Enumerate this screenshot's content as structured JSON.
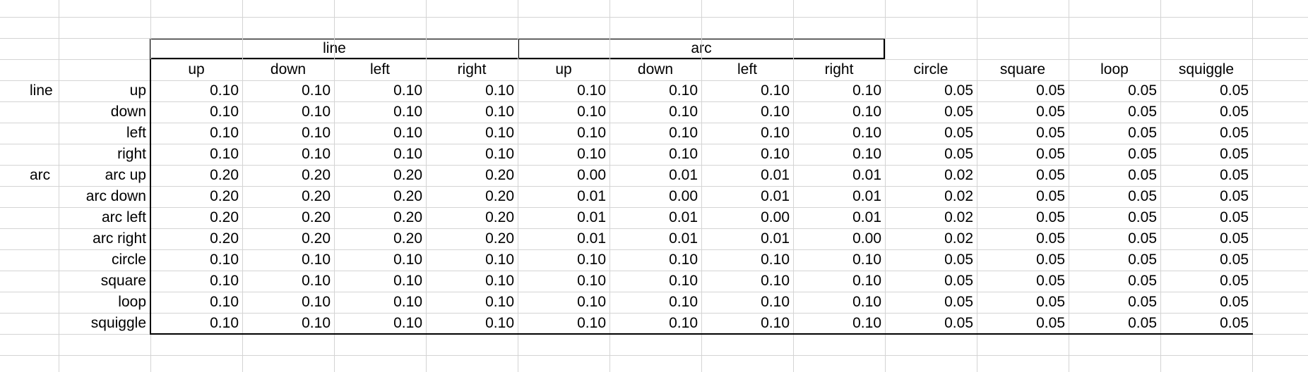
{
  "group_headers": {
    "line": "line",
    "arc": "arc"
  },
  "columns": [
    "up",
    "down",
    "left",
    "right",
    "up",
    "down",
    "left",
    "right",
    "circle",
    "square",
    "loop",
    "squiggle"
  ],
  "row_groups": [
    "line",
    "",
    "",
    "",
    "arc",
    "",
    "",
    "",
    "",
    "",
    "",
    ""
  ],
  "rows": [
    {
      "label": "up",
      "values": [
        "0.10",
        "0.10",
        "0.10",
        "0.10",
        "0.10",
        "0.10",
        "0.10",
        "0.10",
        "0.05",
        "0.05",
        "0.05",
        "0.05"
      ]
    },
    {
      "label": "down",
      "values": [
        "0.10",
        "0.10",
        "0.10",
        "0.10",
        "0.10",
        "0.10",
        "0.10",
        "0.10",
        "0.05",
        "0.05",
        "0.05",
        "0.05"
      ]
    },
    {
      "label": "left",
      "values": [
        "0.10",
        "0.10",
        "0.10",
        "0.10",
        "0.10",
        "0.10",
        "0.10",
        "0.10",
        "0.05",
        "0.05",
        "0.05",
        "0.05"
      ]
    },
    {
      "label": "right",
      "values": [
        "0.10",
        "0.10",
        "0.10",
        "0.10",
        "0.10",
        "0.10",
        "0.10",
        "0.10",
        "0.05",
        "0.05",
        "0.05",
        "0.05"
      ]
    },
    {
      "label": "arc up",
      "values": [
        "0.20",
        "0.20",
        "0.20",
        "0.20",
        "0.00",
        "0.01",
        "0.01",
        "0.01",
        "0.02",
        "0.05",
        "0.05",
        "0.05"
      ]
    },
    {
      "label": "arc down",
      "values": [
        "0.20",
        "0.20",
        "0.20",
        "0.20",
        "0.01",
        "0.00",
        "0.01",
        "0.01",
        "0.02",
        "0.05",
        "0.05",
        "0.05"
      ]
    },
    {
      "label": "arc left",
      "values": [
        "0.20",
        "0.20",
        "0.20",
        "0.20",
        "0.01",
        "0.01",
        "0.00",
        "0.01",
        "0.02",
        "0.05",
        "0.05",
        "0.05"
      ]
    },
    {
      "label": "arc right",
      "values": [
        "0.20",
        "0.20",
        "0.20",
        "0.20",
        "0.01",
        "0.01",
        "0.01",
        "0.00",
        "0.02",
        "0.05",
        "0.05",
        "0.05"
      ]
    },
    {
      "label": "circle",
      "values": [
        "0.10",
        "0.10",
        "0.10",
        "0.10",
        "0.10",
        "0.10",
        "0.10",
        "0.10",
        "0.05",
        "0.05",
        "0.05",
        "0.05"
      ]
    },
    {
      "label": "square",
      "values": [
        "0.10",
        "0.10",
        "0.10",
        "0.10",
        "0.10",
        "0.10",
        "0.10",
        "0.10",
        "0.05",
        "0.05",
        "0.05",
        "0.05"
      ]
    },
    {
      "label": "loop",
      "values": [
        "0.10",
        "0.10",
        "0.10",
        "0.10",
        "0.10",
        "0.10",
        "0.10",
        "0.10",
        "0.05",
        "0.05",
        "0.05",
        "0.05"
      ]
    },
    {
      "label": "squiggle",
      "values": [
        "0.10",
        "0.10",
        "0.10",
        "0.10",
        "0.10",
        "0.10",
        "0.10",
        "0.10",
        "0.05",
        "0.05",
        "0.05",
        "0.05"
      ]
    }
  ]
}
